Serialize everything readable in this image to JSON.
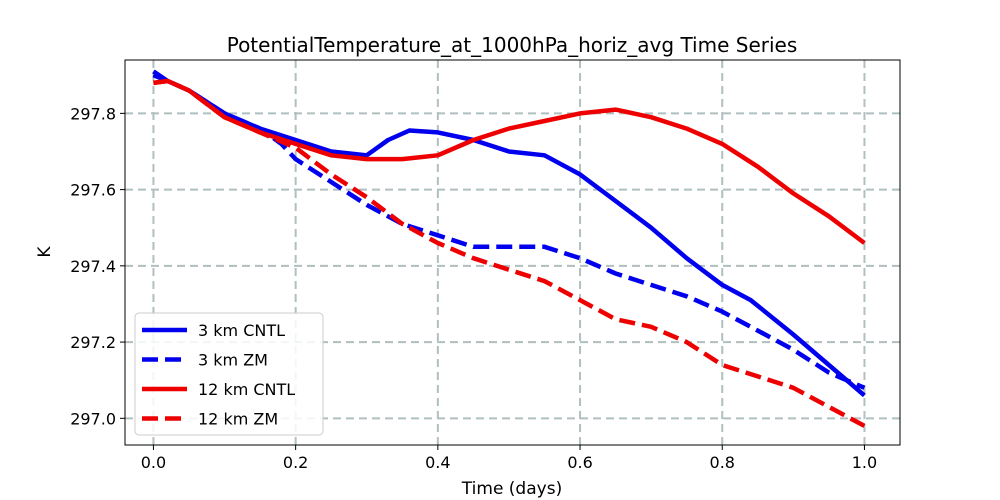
{
  "chart_data": {
    "type": "line",
    "title": "PotentialTemperature_at_1000hPa_horiz_avg Time Series",
    "xlabel": "Time (days)",
    "ylabel": "K",
    "xlim": [
      -0.04,
      1.05
    ],
    "ylim": [
      296.93,
      297.94
    ],
    "xticks": [
      0.0,
      0.2,
      0.4,
      0.6,
      0.8,
      1.0
    ],
    "xtick_labels": [
      "0.0",
      "0.2",
      "0.4",
      "0.6",
      "0.8",
      "1.0"
    ],
    "yticks": [
      297.0,
      297.2,
      297.4,
      297.6,
      297.8
    ],
    "ytick_labels": [
      "297.0",
      "297.2",
      "297.4",
      "297.6",
      "297.8"
    ],
    "grid": true,
    "legend_position": "lower-left",
    "series": [
      {
        "name": "3 km CNTL",
        "color": "#0000ee",
        "style": "solid",
        "x": [
          0.0,
          0.02,
          0.05,
          0.1,
          0.15,
          0.2,
          0.25,
          0.3,
          0.33,
          0.36,
          0.4,
          0.45,
          0.5,
          0.55,
          0.6,
          0.65,
          0.7,
          0.75,
          0.8,
          0.84,
          0.9,
          0.95,
          1.0
        ],
        "y": [
          297.9,
          297.885,
          297.86,
          297.8,
          297.76,
          297.73,
          297.7,
          297.69,
          297.73,
          297.755,
          297.75,
          297.73,
          297.7,
          297.69,
          297.64,
          297.57,
          297.5,
          297.42,
          297.35,
          297.31,
          297.22,
          297.14,
          297.06
        ]
      },
      {
        "name": "3 km ZM",
        "color": "#0000ee",
        "style": "dashed",
        "x": [
          0.0,
          0.02,
          0.05,
          0.1,
          0.15,
          0.18,
          0.2,
          0.25,
          0.3,
          0.35,
          0.4,
          0.45,
          0.5,
          0.55,
          0.6,
          0.65,
          0.7,
          0.75,
          0.8,
          0.85,
          0.9,
          0.95,
          1.0
        ],
        "y": [
          297.91,
          297.885,
          297.86,
          297.8,
          297.76,
          297.72,
          297.68,
          297.62,
          297.56,
          297.51,
          297.48,
          297.45,
          297.45,
          297.45,
          297.42,
          297.38,
          297.35,
          297.32,
          297.28,
          297.23,
          297.18,
          297.12,
          297.08
        ]
      },
      {
        "name": "12 km CNTL",
        "color": "#ee0000",
        "style": "solid",
        "x": [
          0.0,
          0.02,
          0.05,
          0.1,
          0.15,
          0.2,
          0.25,
          0.3,
          0.35,
          0.4,
          0.45,
          0.5,
          0.55,
          0.6,
          0.65,
          0.7,
          0.75,
          0.8,
          0.85,
          0.9,
          0.95,
          1.0
        ],
        "y": [
          297.88,
          297.885,
          297.86,
          297.79,
          297.75,
          297.72,
          297.69,
          297.68,
          297.68,
          297.69,
          297.73,
          297.76,
          297.78,
          297.8,
          297.81,
          297.79,
          297.76,
          297.72,
          297.66,
          297.59,
          297.53,
          297.46
        ]
      },
      {
        "name": "12 km ZM",
        "color": "#ee0000",
        "style": "dashed",
        "x": [
          0.0,
          0.02,
          0.05,
          0.1,
          0.15,
          0.2,
          0.25,
          0.3,
          0.35,
          0.4,
          0.45,
          0.5,
          0.55,
          0.6,
          0.65,
          0.7,
          0.75,
          0.8,
          0.85,
          0.9,
          0.95,
          1.0
        ],
        "y": [
          297.88,
          297.885,
          297.86,
          297.79,
          297.75,
          297.71,
          297.64,
          297.58,
          297.51,
          297.46,
          297.42,
          297.39,
          297.36,
          297.31,
          297.26,
          297.24,
          297.2,
          297.14,
          297.11,
          297.08,
          297.03,
          296.98
        ]
      }
    ]
  }
}
